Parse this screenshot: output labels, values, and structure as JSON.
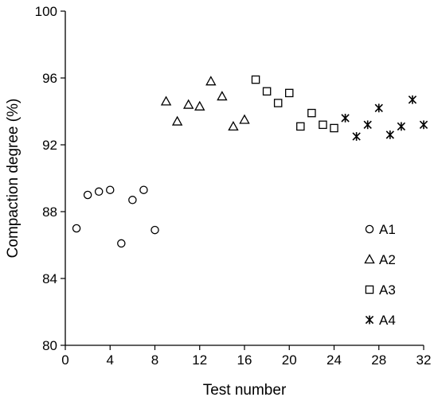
{
  "chart_data": {
    "type": "scatter",
    "title": "",
    "xlabel": "Test number",
    "ylabel": "Compaction degree (%)",
    "xlim": [
      0,
      32
    ],
    "ylim": [
      80,
      100
    ],
    "xticks": [
      0,
      4,
      8,
      12,
      16,
      20,
      24,
      28,
      32
    ],
    "yticks": [
      80,
      84,
      88,
      92,
      96,
      100
    ],
    "grid": false,
    "legend_position": "bottom-right",
    "series": [
      {
        "name": "A1",
        "marker": "circle",
        "x": [
          1,
          2,
          3,
          4,
          5,
          6,
          7,
          8
        ],
        "y": [
          87.0,
          89.0,
          89.2,
          89.3,
          86.1,
          88.7,
          89.3,
          86.9
        ]
      },
      {
        "name": "A2",
        "marker": "triangle",
        "x": [
          9,
          10,
          11,
          12,
          13,
          14,
          15,
          16
        ],
        "y": [
          94.6,
          93.4,
          94.4,
          94.3,
          95.8,
          94.9,
          93.1,
          93.5
        ]
      },
      {
        "name": "A3",
        "marker": "square",
        "x": [
          17,
          18,
          19,
          20,
          21,
          22,
          23,
          24
        ],
        "y": [
          95.9,
          95.2,
          94.5,
          95.1,
          93.1,
          93.9,
          93.2,
          93.0
        ]
      },
      {
        "name": "A4",
        "marker": "asterisk",
        "x": [
          25,
          26,
          27,
          28,
          29,
          30,
          31,
          32
        ],
        "y": [
          93.6,
          92.5,
          93.2,
          94.2,
          92.6,
          93.1,
          94.7,
          93.2
        ]
      }
    ]
  }
}
